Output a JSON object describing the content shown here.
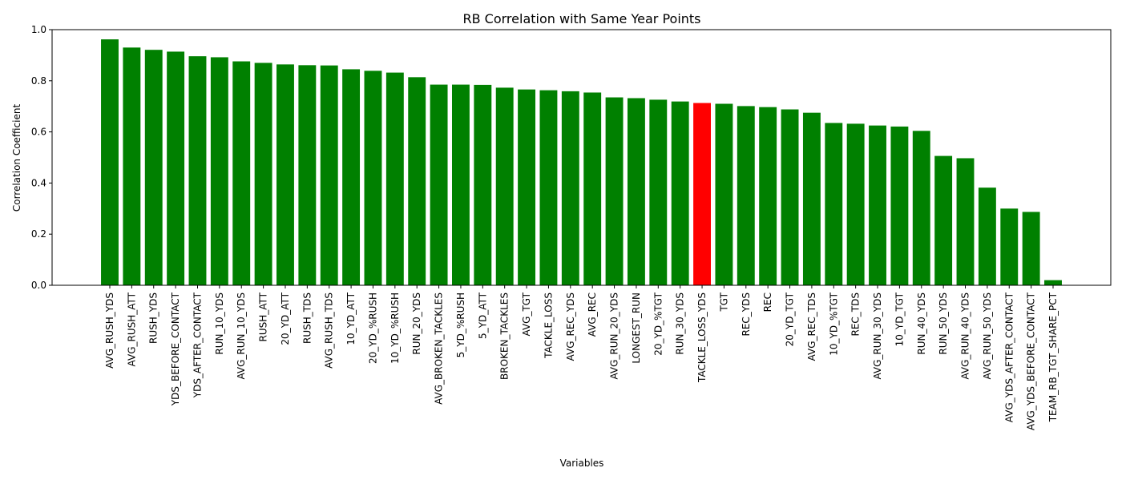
{
  "chart_data": {
    "type": "bar",
    "title": "RB Correlation with Same Year Points",
    "xlabel": "Variables",
    "ylabel": "Correlation Coefficient",
    "ylim": [
      0,
      1.0
    ],
    "yticks": [
      "0.0",
      "0.2",
      "0.4",
      "0.6",
      "0.8",
      "1.0"
    ],
    "grid": false,
    "legend": "none",
    "bar_color": "#008000",
    "highlight_color": "#ff0000",
    "highlight_category": "TACKLE_LOSS_YDS",
    "categories": [
      "AVG_RUSH_YDS",
      "AVG_RUSH_ATT",
      "RUSH_YDS",
      "YDS_BEFORE_CONTACT",
      "YDS_AFTER_CONTACT",
      "RUN_10_YDS",
      "AVG_RUN_10_YDS",
      "RUSH_ATT",
      "20_YD_ATT",
      "RUSH_TDS",
      "AVG_RUSH_TDS",
      "10_YD_ATT",
      "20_YD_%RUSH",
      "10_YD_%RUSH",
      "RUN_20_YDS",
      "AVG_BROKEN_TACKLES",
      "5_YD_%RUSH",
      "5_YD_ATT",
      "BROKEN_TACKLES",
      "AVG_TGT",
      "TACKLE_LOSS",
      "AVG_REC_YDS",
      "AVG_REC",
      "AVG_RUN_20_YDS",
      "LONGEST_RUN",
      "20_YD_%TGT",
      "RUN_30_YDS",
      "TACKLE_LOSS_YDS",
      "TGT",
      "REC_YDS",
      "REC",
      "20_YD_TGT",
      "AVG_REC_TDS",
      "10_YD_%TGT",
      "REC_TDS",
      "AVG_RUN_30_YDS",
      "10_YD_TGT",
      "RUN_40_YDS",
      "RUN_50_YDS",
      "AVG_RUN_40_YDS",
      "AVG_RUN_50_YDS",
      "AVG_YDS_AFTER_CONTACT",
      "AVG_YDS_BEFORE_CONTACT",
      "TEAM_RB_TGT_SHARE_PCT"
    ],
    "values": [
      0.962,
      0.93,
      0.921,
      0.914,
      0.896,
      0.892,
      0.876,
      0.87,
      0.864,
      0.861,
      0.86,
      0.845,
      0.839,
      0.832,
      0.814,
      0.785,
      0.785,
      0.784,
      0.773,
      0.766,
      0.763,
      0.759,
      0.754,
      0.735,
      0.732,
      0.726,
      0.719,
      0.713,
      0.71,
      0.701,
      0.697,
      0.688,
      0.675,
      0.635,
      0.632,
      0.625,
      0.621,
      0.604,
      0.506,
      0.497,
      0.382,
      0.3,
      0.287,
      0.02
    ]
  }
}
